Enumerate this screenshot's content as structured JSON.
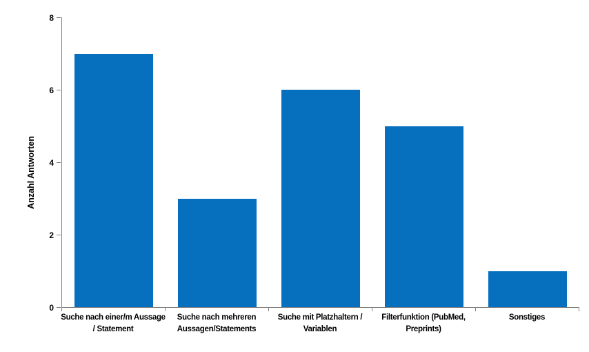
{
  "chart_data": {
    "type": "bar",
    "title": "",
    "xlabel": "",
    "ylabel": "Anzahl Antworten",
    "categories": [
      "Suche nach einer/m Aussage / Statement",
      "Suche nach mehreren Aussagen/Statements",
      "Suche mit Platzhaltern / Variablen",
      "Filterfunktion (PubMed, Preprints)",
      "Sonstiges"
    ],
    "category_lines": [
      [
        "Suche nach einer/m Aussage",
        "/ Statement"
      ],
      [
        "Suche nach mehreren",
        "Aussagen/Statements"
      ],
      [
        "Suche mit Platzhaltern /",
        "Variablen"
      ],
      [
        "Filterfunktion (PubMed,",
        "Preprints)"
      ],
      [
        "Sonstiges"
      ]
    ],
    "values": [
      7,
      3,
      6,
      5,
      1
    ],
    "ylim": [
      0,
      8
    ],
    "yticks": [
      0,
      2,
      4,
      6,
      8
    ],
    "grid": false,
    "legend": null,
    "bar_color": "#0670BE",
    "axis_color": "#7F7F7F",
    "text_color": "#000000",
    "background": "#FFFFFF"
  }
}
